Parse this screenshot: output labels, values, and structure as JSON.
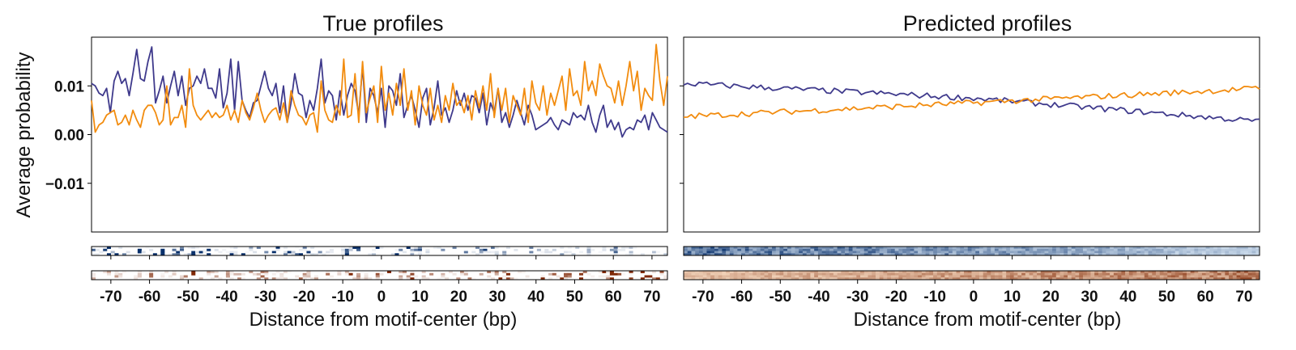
{
  "colors": {
    "blue_series": "#3f3a8c",
    "orange_series": "#f28c0f",
    "heat_blue": "#08306b",
    "heat_orange": "#7f2704"
  },
  "chart_data": [
    {
      "type": "line",
      "title": "True profiles",
      "xlabel": "Distance from motif-center (bp)",
      "ylabel": "Average probability",
      "xlim": [
        -75,
        74
      ],
      "ylim": [
        -0.02,
        0.02
      ],
      "xticks": [
        -70,
        -60,
        -50,
        -40,
        -30,
        -20,
        -10,
        0,
        10,
        20,
        30,
        40,
        50,
        60,
        70
      ],
      "yticks": [
        0.01,
        0.0,
        -0.01
      ],
      "ytick_labels": [
        "0.01",
        "0.00",
        "−0.01"
      ],
      "series": [
        {
          "color": "#3f3a8c",
          "values": [
            0.0105,
            0.01,
            0.0085,
            0.008,
            0.0095,
            0.0045,
            0.011,
            0.013,
            0.0105,
            0.0115,
            0.008,
            0.0125,
            0.0175,
            0.0115,
            0.011,
            0.015,
            0.018,
            0.0065,
            0.009,
            0.012,
            0.0065,
            0.01,
            0.013,
            0.008,
            0.012,
            0.006,
            0.0095,
            0.01,
            0.012,
            0.0105,
            0.0135,
            0.0095,
            0.0095,
            0.0075,
            0.0135,
            0.0055,
            0.0085,
            0.0155,
            0.005,
            0.015,
            0.007,
            0.005,
            0.0035,
            0.0065,
            0.007,
            0.01,
            0.013,
            0.0095,
            0.008,
            0.0105,
            0.0045,
            0.01,
            0.0025,
            0.0065,
            0.0125,
            0.0085,
            0.008,
            0.0035,
            0.007,
            0.005,
            0.0095,
            0.0155,
            0.0065,
            0.009,
            0.008,
            0.003,
            0.009,
            0.004,
            0.008,
            0.0105,
            0.009,
            0.004,
            0.014,
            0.0025,
            0.0095,
            0.008,
            0.0045,
            0.0095,
            0.0015,
            0.01,
            0.009,
            0.006,
            0.0125,
            0.0035,
            0.006,
            0.008,
            0.005,
            0.0015,
            0.0075,
            0.0095,
            0.002,
            0.0055,
            0.011,
            0.004,
            0.0055,
            0.0025,
            0.005,
            0.009,
            0.006,
            0.0085,
            0.005,
            0.008,
            0.0075,
            0.0045,
            0.0085,
            0.002,
            0.0065,
            0.0045,
            0.0095,
            0.0025,
            0.0045,
            0.0015,
            0.004,
            0.007,
            0.0045,
            0.002,
            0.006,
            0.004,
            0.001,
            0.0015,
            0.002,
            0.0025,
            0.0035,
            0.002,
            0.001,
            0.003,
            0.0025,
            0.002,
            0.0045,
            0.0035,
            0.004,
            0.003,
            0.006,
            0.0025,
            0.0005,
            0.004,
            0.006,
            0.0015,
            0.003,
            0.001,
            0.0025,
            -0.0005,
            0.001,
            0.0015,
            0.001,
            0.003,
            0.0025,
            0.004,
            0.001,
            0.0045,
            0.003,
            0.0015,
            0.001,
            0.0005
          ]
        },
        {
          "color": "#f28c0f",
          "values": [
            0.007,
            0.0005,
            0.002,
            0.0025,
            0.004,
            0.0045,
            0.005,
            0.002,
            0.0025,
            0.004,
            0.002,
            0.005,
            0.003,
            0.0015,
            0.005,
            0.006,
            0.006,
            0.0045,
            0.002,
            0.003,
            0.01,
            0.002,
            0.0035,
            0.0035,
            0.006,
            0.0015,
            0.0135,
            0.006,
            0.004,
            0.003,
            0.004,
            0.005,
            0.0035,
            0.0045,
            0.0035,
            0.004,
            0.006,
            0.003,
            0.005,
            0.0025,
            0.007,
            0.0045,
            0.003,
            0.0055,
            0.0085,
            0.005,
            0.0025,
            0.004,
            0.005,
            0.0055,
            0.003,
            0.0065,
            0.0025,
            0.009,
            0.006,
            0.004,
            0.0035,
            0.002,
            0.004,
            0.0045,
            0.0005,
            0.011,
            0.005,
            0.003,
            0.0025,
            0.006,
            0.004,
            0.0155,
            0.0035,
            0.004,
            0.0125,
            0.0025,
            0.015,
            0.0045,
            0.0075,
            0.01,
            0.0025,
            0.014,
            0.005,
            0.0085,
            0.004,
            0.0105,
            0.006,
            0.0135,
            0.005,
            0.009,
            0.002,
            0.01,
            0.006,
            0.004,
            0.0095,
            0.003,
            0.006,
            0.0025,
            0.008,
            0.005,
            0.0105,
            0.006,
            0.007,
            0.0045,
            0.008,
            0.003,
            0.009,
            0.0055,
            0.01,
            0.005,
            0.0125,
            0.0035,
            0.0095,
            0.005,
            0.0095,
            0.0025,
            0.008,
            0.006,
            0.004,
            0.0095,
            0.0025,
            0.011,
            0.0065,
            0.005,
            0.01,
            0.004,
            0.0085,
            0.006,
            0.009,
            0.012,
            0.005,
            0.0135,
            0.008,
            0.009,
            0.006,
            0.015,
            0.009,
            0.011,
            0.008,
            0.0145,
            0.012,
            0.01,
            0.0095,
            0.0065,
            0.011,
            0.006,
            0.01,
            0.015,
            0.009,
            0.013,
            0.005,
            0.0095,
            0.008,
            0.007,
            0.0185,
            0.011,
            0.006,
            0.012
          ]
        }
      ],
      "heatmaps": [
        {
          "colormap": "Blues"
        },
        {
          "colormap": "Oranges"
        }
      ]
    },
    {
      "type": "line",
      "title": "Predicted profiles",
      "xlabel": "Distance from motif-center (bp)",
      "ylabel": "",
      "xlim": [
        -75,
        74
      ],
      "ylim": [
        -0.02,
        0.02
      ],
      "xticks": [
        -70,
        -60,
        -50,
        -40,
        -30,
        -20,
        -10,
        0,
        10,
        20,
        30,
        40,
        50,
        60,
        70
      ],
      "yticks": [
        0.01,
        0.0,
        -0.01
      ],
      "ytick_labels": [
        "",
        "",
        ""
      ],
      "series": [
        {
          "color": "#3f3a8c",
          "trend": [
            0.0105,
            0.0075,
            0.0027
          ],
          "values": []
        },
        {
          "color": "#f28c0f",
          "trend": [
            0.0037,
            0.0065,
            0.0095
          ],
          "values": []
        }
      ],
      "heatmaps": [
        {
          "colormap": "Blues"
        },
        {
          "colormap": "Oranges"
        }
      ]
    }
  ]
}
